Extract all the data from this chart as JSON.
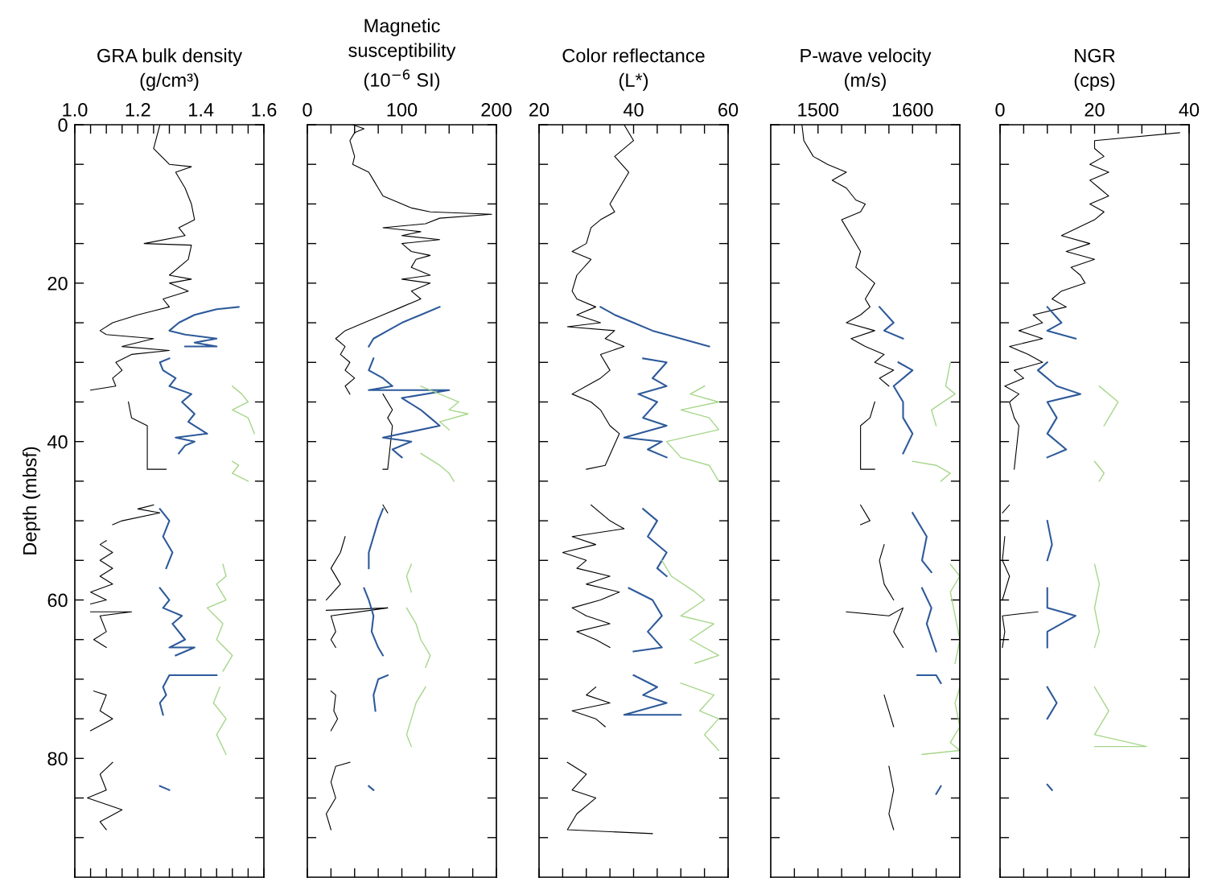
{
  "chart_data": [
    {
      "type": "line",
      "title": "GRA bulk density\n(g/cm³)",
      "ylabel": "Depth (mbsf)",
      "xlim": [
        1.0,
        1.6
      ],
      "ylim": [
        95,
        0
      ],
      "xticks": [
        {
          "value": 1.0,
          "label": "1.0"
        },
        {
          "value": 1.05,
          "label": null
        },
        {
          "value": 1.1,
          "label": null
        },
        {
          "value": 1.15,
          "label": null
        },
        1.2,
        {
          "value": 1.25,
          "label": null
        },
        {
          "value": 1.3,
          "label": null
        },
        {
          "value": 1.35,
          "label": null
        },
        1.4,
        {
          "value": 1.45,
          "label": null
        },
        {
          "value": 1.5,
          "label": null
        },
        {
          "value": 1.55,
          "label": null
        },
        1.6
      ],
      "yticks": [
        0,
        {
          "value": 5,
          "label": null
        },
        {
          "value": 10,
          "label": null
        },
        {
          "value": 15,
          "label": null
        },
        20,
        {
          "value": 25,
          "label": null
        },
        {
          "value": 30,
          "label": null
        },
        {
          "value": 35,
          "label": null
        },
        40,
        {
          "value": 45,
          "label": null
        },
        {
          "value": 50,
          "label": null
        },
        {
          "value": 55,
          "label": null
        },
        60,
        {
          "value": 65,
          "label": null
        },
        {
          "value": 70,
          "label": null
        },
        {
          "value": 75,
          "label": null
        },
        80,
        {
          "value": 85,
          "label": null
        },
        {
          "value": 90,
          "label": null
        }
      ],
      "series": [
        {
          "color": "#000000",
          "x": [
            1.27,
            1.25,
            1.3,
            1.37,
            1.32,
            1.35,
            1.37,
            1.38,
            1.33,
            1.35,
            1.22,
            1.37,
            1.36,
            1.3,
            1.37,
            1.3,
            1.36,
            1.28,
            1.3,
            1.25,
            1.2,
            1.12,
            1.08,
            1.1,
            1.25,
            1.15,
            1.3,
            1.18,
            1.13,
            1.15,
            1.12,
            1.13,
            1.05,
            null,
            1.17,
            1.18,
            1.23,
            1.23,
            1.29,
            null,
            1.25,
            1.2,
            1.27,
            1.15,
            1.12,
            null,
            1.1,
            1.08,
            1.12,
            1.08,
            1.12,
            1.08,
            1.12,
            1.05,
            1.1,
            1.05,
            null,
            1.05,
            1.18,
            1.08,
            1.1,
            1.06,
            1.1,
            null,
            1.06,
            1.1,
            1.08,
            1.12,
            1.05,
            null,
            1.12,
            1.08,
            1.1,
            1.04,
            1.15,
            1.08,
            1.1
          ],
          "values": [
            0,
            3,
            5,
            5.3,
            6,
            8,
            10,
            12,
            13,
            14,
            15,
            15.2,
            17,
            19,
            19.5,
            20,
            21,
            22,
            23,
            23.5,
            24,
            25,
            26,
            26.5,
            27,
            28,
            28.5,
            29,
            30,
            31,
            32,
            33,
            33.5,
            null,
            35,
            37,
            38,
            43.5,
            43.5,
            null,
            48,
            48.5,
            49,
            50,
            50.5,
            null,
            52.5,
            53,
            54,
            55,
            56,
            57,
            58,
            59,
            60,
            60.5,
            null,
            61.5,
            61.5,
            62,
            64,
            65,
            66,
            null,
            71.5,
            72,
            74,
            75,
            76.5,
            null,
            80.5,
            82,
            84,
            85,
            86.5,
            88,
            89
          ]
        },
        {
          "color": "#2d5a9a",
          "x": [
            1.52,
            1.45,
            1.38,
            1.33,
            1.3,
            1.35,
            1.45,
            1.38,
            1.45,
            1.35,
            null,
            1.3,
            1.27,
            1.28,
            1.32,
            1.3,
            1.37,
            1.34,
            1.38,
            1.36,
            1.42,
            1.32,
            1.38,
            1.35,
            1.33,
            null,
            1.27,
            1.3,
            1.28,
            1.31,
            1.29,
            null,
            1.27,
            1.3,
            1.28,
            1.34,
            1.31,
            1.35,
            1.3,
            1.38,
            1.32,
            null,
            1.45,
            1.3,
            1.28,
            1.29,
            1.27,
            1.28,
            null,
            1.27,
            1.3
          ],
          "values": [
            23,
            23.3,
            24,
            25,
            26,
            26.5,
            27,
            27.5,
            28,
            28,
            null,
            29.5,
            30,
            31,
            32,
            33,
            34,
            35,
            36.5,
            37.5,
            39,
            39.5,
            40,
            40.5,
            41.5,
            null,
            48.5,
            50,
            52,
            54,
            56,
            null,
            58.5,
            60,
            61,
            62,
            63,
            65,
            66,
            66,
            67,
            null,
            69.5,
            69.5,
            71,
            72,
            73,
            74.5,
            null,
            83.5,
            84
          ]
        },
        {
          "color": "#a6d68a",
          "x": [
            1.5,
            1.53,
            1.55,
            1.5,
            1.55,
            1.57,
            null,
            1.5,
            1.52,
            1.5,
            1.55,
            null,
            1.47,
            1.48,
            1.45,
            1.48,
            1.42,
            1.47,
            1.45,
            1.5,
            1.47,
            null,
            1.46,
            1.44,
            1.48,
            1.45,
            1.48
          ],
          "values": [
            33,
            34,
            35,
            36,
            37,
            39,
            null,
            42.5,
            43,
            44,
            45,
            null,
            55.5,
            57,
            58,
            60,
            61,
            63,
            65,
            67,
            69,
            null,
            71,
            73,
            75,
            77,
            79.5
          ]
        }
      ]
    },
    {
      "type": "line",
      "title": "Magnetic\nsusceptibility\n(10$^{−6}$ SI)",
      "xlim": [
        0,
        200
      ],
      "ylim": [
        95,
        0
      ],
      "tick_labels": "x",
      "xticks": [
        0,
        {
          "value": 25,
          "label": null
        },
        {
          "value": 50,
          "label": null
        },
        {
          "value": 75,
          "label": null
        },
        100,
        {
          "value": 125,
          "label": null
        },
        {
          "value": 150,
          "label": null
        },
        {
          "value": 175,
          "label": null
        },
        200
      ],
      "yticks": [
        {
          "value": 0,
          "label": null
        },
        {
          "value": 5,
          "label": null
        },
        {
          "value": 10,
          "label": null
        },
        {
          "value": 15,
          "label": null
        },
        {
          "value": 20,
          "label": null
        },
        {
          "value": 25,
          "label": null
        },
        {
          "value": 30,
          "label": null
        },
        {
          "value": 35,
          "label": null
        },
        {
          "value": 40,
          "label": null
        },
        {
          "value": 45,
          "label": null
        },
        {
          "value": 50,
          "label": null
        },
        {
          "value": 55,
          "label": null
        },
        {
          "value": 60,
          "label": null
        },
        {
          "value": 65,
          "label": null
        },
        {
          "value": 70,
          "label": null
        },
        {
          "value": 75,
          "label": null
        },
        {
          "value": 80,
          "label": null
        },
        {
          "value": 85,
          "label": null
        },
        {
          "value": 90,
          "label": null
        }
      ],
      "series": [
        {
          "color": "#000000",
          "x": [
            48,
            60,
            50,
            45,
            50,
            48,
            65,
            70,
            75,
            80,
            110,
            130,
            195,
            140,
            125,
            80,
            120,
            100,
            140,
            100,
            110,
            130,
            115,
            110,
            130,
            100,
            130,
            110,
            120,
            100,
            80,
            60,
            40,
            30,
            40,
            35,
            45,
            40,
            50,
            40,
            45,
            null,
            80,
            90,
            85,
            90,
            85,
            80,
            null,
            80,
            85,
            null,
            40,
            35,
            25,
            35,
            20,
            null,
            20,
            85,
            25,
            30,
            25,
            30,
            null,
            25,
            30,
            28,
            32,
            25,
            null,
            45,
            30,
            25,
            30,
            20,
            25
          ],
          "values": [
            0,
            0.5,
            1,
            2,
            4,
            5,
            6,
            7,
            8,
            9,
            10.5,
            11,
            11.3,
            11.8,
            12.5,
            13,
            13.5,
            14,
            14.5,
            15,
            16,
            16.5,
            17,
            18,
            19,
            19.5,
            20,
            21,
            22,
            23,
            24,
            25,
            26,
            27,
            28,
            29,
            30,
            31,
            32,
            33,
            34,
            null,
            34,
            36,
            37,
            38,
            43.5,
            43.5,
            null,
            48,
            49,
            null,
            52,
            54,
            56,
            58,
            60,
            null,
            61.3,
            61,
            62,
            64,
            65,
            66,
            null,
            71.5,
            72,
            74,
            75,
            76.5,
            null,
            80.5,
            81,
            83,
            85,
            87,
            89
          ]
        },
        {
          "color": "#2d5a9a",
          "x": [
            140,
            120,
            100,
            85,
            70,
            65,
            null,
            70,
            65,
            80,
            90,
            65,
            150,
            100,
            120,
            130,
            140,
            80,
            110,
            90,
            100,
            null,
            80,
            75,
            70,
            65,
            65,
            null,
            60,
            65,
            70,
            68,
            75,
            80,
            null,
            85,
            75,
            70,
            72,
            null,
            65,
            70
          ],
          "values": [
            23,
            24,
            25,
            26,
            27,
            28,
            null,
            29.5,
            31,
            32,
            33,
            33.5,
            33.5,
            34.5,
            36,
            37,
            38,
            39.5,
            40,
            41,
            42,
            null,
            48.5,
            50,
            52,
            54,
            56,
            null,
            58.5,
            60,
            62,
            64,
            66,
            67,
            null,
            69.5,
            70,
            72,
            74,
            null,
            83.5,
            84
          ]
        },
        {
          "color": "#a6d68a",
          "x": [
            120,
            140,
            160,
            150,
            170,
            140,
            150,
            null,
            120,
            140,
            150,
            155,
            null,
            110,
            105,
            110,
            null,
            105,
            115,
            120,
            130,
            125,
            null,
            125,
            115,
            110,
            105,
            110
          ],
          "values": [
            33,
            34,
            35,
            36,
            36.5,
            37.5,
            38.5,
            null,
            41.5,
            43,
            44,
            45,
            null,
            55.5,
            57,
            59,
            null,
            61,
            63,
            65,
            67,
            68.5,
            null,
            71,
            73,
            75,
            77,
            78.5
          ]
        }
      ]
    },
    {
      "type": "line",
      "title": "Color reflectance\n(L*)",
      "xlim": [
        20,
        60
      ],
      "ylim": [
        95,
        0
      ],
      "tick_labels": "x",
      "xticks": [
        20,
        {
          "value": 25,
          "label": null
        },
        {
          "value": 30,
          "label": null
        },
        {
          "value": 35,
          "label": null
        },
        40,
        {
          "value": 45,
          "label": null
        },
        {
          "value": 50,
          "label": null
        },
        {
          "value": 55,
          "label": null
        },
        60
      ],
      "yticks": [
        {
          "value": 0,
          "label": null
        },
        {
          "value": 5,
          "label": null
        },
        {
          "value": 10,
          "label": null
        },
        {
          "value": 15,
          "label": null
        },
        {
          "value": 20,
          "label": null
        },
        {
          "value": 25,
          "label": null
        },
        {
          "value": 30,
          "label": null
        },
        {
          "value": 35,
          "label": null
        },
        {
          "value": 40,
          "label": null
        },
        {
          "value": 45,
          "label": null
        },
        {
          "value": 50,
          "label": null
        },
        {
          "value": 55,
          "label": null
        },
        {
          "value": 60,
          "label": null
        },
        {
          "value": 65,
          "label": null
        },
        {
          "value": 70,
          "label": null
        },
        {
          "value": 75,
          "label": null
        },
        {
          "value": 80,
          "label": null
        },
        {
          "value": 85,
          "label": null
        },
        {
          "value": 90,
          "label": null
        }
      ],
      "series": [
        {
          "color": "#000000",
          "x": [
            38,
            40,
            36,
            39,
            37,
            35,
            36,
            33,
            31,
            30,
            27,
            31,
            28,
            27,
            28,
            32,
            28,
            33,
            26,
            36,
            34,
            38,
            33,
            35,
            33,
            30,
            27,
            31,
            33,
            35,
            37,
            34,
            30,
            null,
            31,
            35,
            38,
            27,
            32,
            25,
            30,
            28,
            35,
            30,
            37,
            33,
            27,
            30,
            35,
            28,
            32,
            35,
            null,
            32,
            30,
            35,
            27,
            32,
            34,
            null,
            26,
            30,
            27,
            32,
            28,
            26,
            44
          ],
          "values": [
            0,
            2,
            4,
            6,
            8,
            10,
            11,
            12,
            13,
            15,
            16,
            17,
            19,
            21,
            22,
            23,
            24,
            25,
            25.5,
            26,
            27,
            28,
            29,
            31,
            32,
            33,
            34,
            35,
            36,
            38,
            39,
            43,
            43.5,
            null,
            48,
            50,
            51,
            52,
            53,
            54,
            55,
            56,
            57,
            58,
            59,
            60,
            61,
            62,
            63,
            64,
            65,
            66,
            null,
            71,
            72,
            73,
            74,
            75,
            76,
            null,
            80.5,
            82,
            84,
            85,
            87,
            89,
            89.5
          ]
        },
        {
          "color": "#2d5a9a",
          "x": [
            33,
            36,
            40,
            44,
            50,
            56,
            null,
            42,
            47,
            44,
            47,
            41,
            45,
            42,
            47,
            38,
            46,
            43,
            47,
            null,
            42,
            45,
            43,
            47,
            45,
            47,
            null,
            39,
            44,
            46,
            43,
            46,
            40,
            null,
            40,
            45,
            42,
            47,
            38,
            50
          ],
          "values": [
            23,
            24,
            25,
            26,
            27,
            28,
            null,
            29.5,
            30,
            32,
            33,
            34,
            35,
            37,
            38,
            39.5,
            40,
            41,
            42,
            null,
            48.5,
            50,
            52,
            54,
            56,
            57,
            null,
            58.5,
            60,
            62,
            64,
            66,
            66.5,
            null,
            69.5,
            71,
            72,
            73,
            74.5,
            74.5
          ]
        },
        {
          "color": "#a6d68a",
          "x": [
            55,
            52,
            58,
            50,
            56,
            58,
            47,
            50,
            56,
            58,
            null,
            46,
            48,
            53,
            55,
            50,
            57,
            52,
            58,
            53,
            null,
            50,
            57,
            54,
            58,
            55,
            58
          ],
          "values": [
            33,
            34,
            35,
            36,
            37,
            38.5,
            40,
            42,
            43,
            45,
            null,
            55,
            57,
            59,
            60,
            62,
            63,
            65,
            67,
            68,
            null,
            70.5,
            72,
            74,
            75,
            77,
            79
          ]
        }
      ]
    },
    {
      "type": "line",
      "title": "P-wave velocity\n(m/s)",
      "xlim": [
        1450,
        1650
      ],
      "ylim": [
        95,
        0
      ],
      "tick_labels": "x",
      "xticks": [
        {
          "value": 1475,
          "label": null
        },
        1500,
        {
          "value": 1525,
          "label": null
        },
        {
          "value": 1550,
          "label": null
        },
        {
          "value": 1575,
          "label": null
        },
        1600,
        {
          "value": 1625,
          "label": null
        }
      ],
      "yticks": [
        {
          "value": 0,
          "label": null
        },
        {
          "value": 5,
          "label": null
        },
        {
          "value": 10,
          "label": null
        },
        {
          "value": 15,
          "label": null
        },
        {
          "value": 20,
          "label": null
        },
        {
          "value": 25,
          "label": null
        },
        {
          "value": 30,
          "label": null
        },
        {
          "value": 35,
          "label": null
        },
        {
          "value": 40,
          "label": null
        },
        {
          "value": 45,
          "label": null
        },
        {
          "value": 50,
          "label": null
        },
        {
          "value": 55,
          "label": null
        },
        {
          "value": 60,
          "label": null
        },
        {
          "value": 65,
          "label": null
        },
        {
          "value": 70,
          "label": null
        },
        {
          "value": 75,
          "label": null
        },
        {
          "value": 80,
          "label": null
        },
        {
          "value": 85,
          "label": null
        },
        {
          "value": 90,
          "label": null
        }
      ],
      "series": [
        {
          "color": "#000000",
          "x": [
            1483,
            1485,
            1495,
            1510,
            1530,
            1515,
            1530,
            1540,
            1550,
            1545,
            1525,
            1535,
            1545,
            1540,
            1560,
            1550,
            1555,
            1545,
            1530,
            1560,
            1535,
            1550,
            1570,
            1560,
            1580,
            1565,
            1575,
            null,
            1560,
            1555,
            1545,
            1545,
            1560,
            null,
            1545,
            1555,
            1545,
            null,
            1570,
            1565,
            1570,
            1580,
            null,
            1530,
            1575,
            1590,
            1580,
            1590,
            null,
            1570,
            1575,
            1580,
            null,
            1575,
            1580,
            1575,
            1580
          ],
          "values": [
            0,
            2,
            4,
            5,
            6,
            7,
            8,
            9.5,
            10,
            11,
            12,
            14,
            16,
            18,
            20,
            22,
            23,
            24,
            25,
            26,
            27,
            28,
            29,
            30,
            31,
            32,
            33,
            null,
            35,
            37,
            38,
            43.5,
            43.5,
            null,
            48,
            50,
            50.5,
            null,
            53,
            55,
            58,
            60,
            null,
            61.5,
            62,
            61,
            64,
            66,
            null,
            72,
            74,
            76,
            null,
            81,
            84,
            87,
            89
          ]
        },
        {
          "color": "#2d5a9a",
          "x": [
            1565,
            1580,
            1570,
            1590,
            null,
            1585,
            1600,
            1580,
            1590,
            1590,
            1600,
            1590,
            null,
            1600,
            1615,
            1610,
            1620,
            null,
            1610,
            1620,
            1615,
            1625,
            null,
            1605,
            1625,
            1630,
            null,
            1630,
            1625
          ],
          "values": [
            23,
            25,
            26,
            27,
            null,
            30,
            31,
            33,
            35,
            37,
            39,
            41.5,
            null,
            49,
            52,
            55,
            56.5,
            null,
            58.5,
            61,
            63,
            66.5,
            null,
            69.5,
            69.5,
            70.5,
            null,
            83.5,
            84.5
          ]
        },
        {
          "color": "#a6d68a",
          "x": [
            1640,
            1635,
            1645,
            1620,
            1625,
            null,
            1600,
            1625,
            1640,
            1630,
            null,
            1640,
            1650,
            1640,
            1645,
            1650,
            1645,
            null,
            1650,
            1645,
            1650,
            1640,
            1650,
            1610
          ],
          "values": [
            30,
            33,
            34,
            36,
            38,
            null,
            42.5,
            43,
            44,
            45,
            null,
            55.5,
            57,
            59,
            62,
            65,
            68,
            null,
            71,
            73,
            76,
            78,
            79,
            79.5
          ]
        }
      ]
    },
    {
      "type": "line",
      "title": "NGR\n(cps)",
      "xlim": [
        0,
        40
      ],
      "ylim": [
        95,
        0
      ],
      "tick_labels": "x",
      "xticks": [
        0,
        {
          "value": 5,
          "label": null
        },
        {
          "value": 10,
          "label": null
        },
        {
          "value": 15,
          "label": null
        },
        20,
        {
          "value": 25,
          "label": null
        },
        {
          "value": 30,
          "label": null
        },
        {
          "value": 35,
          "label": null
        },
        40
      ],
      "yticks": [
        {
          "value": 0,
          "label": null
        },
        {
          "value": 5,
          "label": null
        },
        {
          "value": 10,
          "label": null
        },
        {
          "value": 15,
          "label": null
        },
        {
          "value": 20,
          "label": null
        },
        {
          "value": 25,
          "label": null
        },
        {
          "value": 30,
          "label": null
        },
        {
          "value": 35,
          "label": null
        },
        {
          "value": 40,
          "label": null
        },
        {
          "value": 45,
          "label": null
        },
        {
          "value": 50,
          "label": null
        },
        {
          "value": 55,
          "label": null
        },
        {
          "value": 60,
          "label": null
        },
        {
          "value": 65,
          "label": null
        },
        {
          "value": 70,
          "label": null
        },
        {
          "value": 75,
          "label": null
        },
        {
          "value": 80,
          "label": null
        },
        {
          "value": 85,
          "label": null
        },
        {
          "value": 90,
          "label": null
        }
      ],
      "series": [
        {
          "color": "#000000",
          "x": [
            38,
            20,
            20,
            22,
            19,
            23,
            19,
            21,
            23,
            19,
            22,
            20,
            13,
            19,
            14,
            20,
            15,
            17,
            18,
            13,
            11,
            14,
            7,
            9,
            4,
            9,
            2,
            6,
            9,
            3,
            5,
            1,
            4,
            2,
            3,
            4,
            3,
            null,
            2,
            0.5,
            null,
            1,
            0.5,
            2,
            0.5,
            null,
            8,
            0.5,
            1,
            0.5
          ],
          "values": [
            1,
            2,
            3,
            4,
            5,
            6,
            7,
            8,
            9,
            10,
            11,
            12,
            14,
            15,
            16,
            17,
            18,
            19,
            20,
            21,
            22,
            23,
            24,
            25,
            26,
            27,
            28,
            29,
            30,
            31,
            32,
            33,
            34,
            35,
            37,
            38,
            43.5,
            null,
            48,
            49,
            null,
            52,
            55,
            57,
            60,
            null,
            61.5,
            62,
            64,
            66
          ]
        },
        {
          "color": "#2d5a9a",
          "x": [
            10,
            13,
            10,
            16,
            null,
            10,
            8,
            12,
            17,
            10,
            12,
            10,
            14,
            10,
            null,
            10,
            11,
            10,
            null,
            10,
            10,
            16,
            10,
            10,
            null,
            10,
            12,
            10,
            null,
            10,
            11
          ],
          "values": [
            23,
            25,
            26,
            27,
            null,
            30,
            31,
            33,
            34,
            35,
            37,
            39,
            41,
            42,
            null,
            50,
            53,
            55,
            null,
            58.5,
            61,
            62,
            64,
            66,
            null,
            71,
            73,
            75,
            null,
            83.3,
            84
          ]
        },
        {
          "color": "#a6d68a",
          "x": [
            21,
            25,
            23,
            22,
            null,
            20,
            22,
            21,
            null,
            20,
            21,
            20,
            21,
            20,
            null,
            20,
            23,
            20,
            31,
            20
          ],
          "values": [
            33,
            35,
            37,
            38,
            null,
            42.5,
            44,
            45,
            null,
            55.5,
            58,
            61,
            64,
            66,
            null,
            71,
            74,
            77,
            78.5,
            78.5
          ]
        }
      ]
    }
  ]
}
